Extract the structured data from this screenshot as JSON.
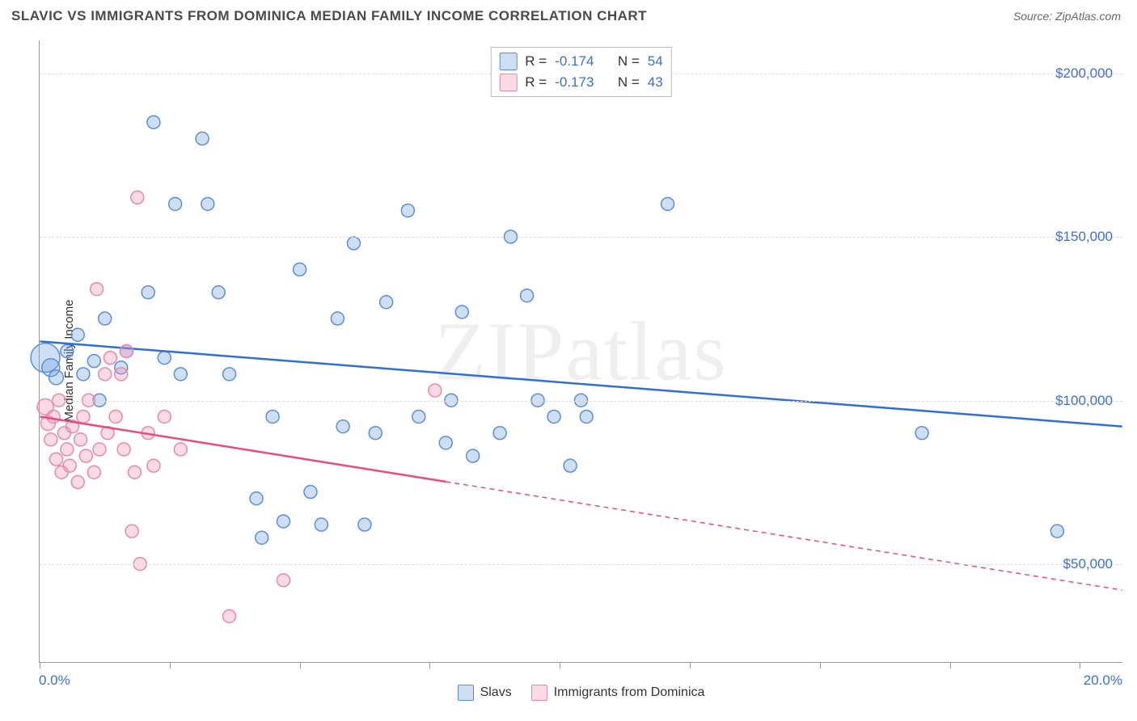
{
  "title": "SLAVIC VS IMMIGRANTS FROM DOMINICA MEDIAN FAMILY INCOME CORRELATION CHART",
  "source": "Source: ZipAtlas.com",
  "watermark": "ZIPatlas",
  "chart": {
    "type": "scatter",
    "ylabel": "Median Family Income",
    "xlim": [
      0,
      20
    ],
    "ylim": [
      20000,
      210000
    ],
    "x_start_label": "0.0%",
    "x_end_label": "20.0%",
    "xtick_positions_pct": [
      0,
      12,
      24,
      36,
      48,
      60,
      72,
      84,
      96
    ],
    "y_gridlines": [
      50000,
      100000,
      150000,
      200000
    ],
    "y_tick_labels": [
      "$50,000",
      "$100,000",
      "$150,000",
      "$200,000"
    ],
    "grid_color": "#dddddd",
    "axis_color": "#999999",
    "background_color": "#ffffff",
    "tick_label_color": "#3b6fd6",
    "marker_radius_base": 8,
    "marker_stroke_width": 1.5,
    "regression_line_width": 2.5,
    "series": [
      {
        "name": "Slavs",
        "fill_color": "rgba(116,163,223,0.35)",
        "stroke_color": "#5a8fd6",
        "line_color": "#2f6fd6",
        "R": "-0.174",
        "N": "54",
        "regression": {
          "x1": 0,
          "y1": 118000,
          "x2": 20,
          "y2": 92000,
          "solid_until_x": 20
        },
        "points": [
          {
            "x": 0.1,
            "y": 113000,
            "r": 18
          },
          {
            "x": 0.2,
            "y": 110000,
            "r": 11
          },
          {
            "x": 0.3,
            "y": 107000,
            "r": 9
          },
          {
            "x": 0.5,
            "y": 115000,
            "r": 8
          },
          {
            "x": 0.7,
            "y": 120000,
            "r": 8
          },
          {
            "x": 0.8,
            "y": 108000,
            "r": 8
          },
          {
            "x": 1.0,
            "y": 112000,
            "r": 8
          },
          {
            "x": 1.1,
            "y": 100000,
            "r": 8
          },
          {
            "x": 1.2,
            "y": 125000,
            "r": 8
          },
          {
            "x": 1.5,
            "y": 110000,
            "r": 8
          },
          {
            "x": 1.6,
            "y": 115000,
            "r": 8
          },
          {
            "x": 2.0,
            "y": 133000,
            "r": 8
          },
          {
            "x": 2.1,
            "y": 185000,
            "r": 8
          },
          {
            "x": 2.3,
            "y": 113000,
            "r": 8
          },
          {
            "x": 2.5,
            "y": 160000,
            "r": 8
          },
          {
            "x": 2.6,
            "y": 108000,
            "r": 8
          },
          {
            "x": 3.0,
            "y": 180000,
            "r": 8
          },
          {
            "x": 3.1,
            "y": 160000,
            "r": 8
          },
          {
            "x": 3.3,
            "y": 133000,
            "r": 8
          },
          {
            "x": 3.5,
            "y": 108000,
            "r": 8
          },
          {
            "x": 4.0,
            "y": 70000,
            "r": 8
          },
          {
            "x": 4.1,
            "y": 58000,
            "r": 8
          },
          {
            "x": 4.3,
            "y": 95000,
            "r": 8
          },
          {
            "x": 4.5,
            "y": 63000,
            "r": 8
          },
          {
            "x": 4.8,
            "y": 140000,
            "r": 8
          },
          {
            "x": 5.0,
            "y": 72000,
            "r": 8
          },
          {
            "x": 5.2,
            "y": 62000,
            "r": 8
          },
          {
            "x": 5.5,
            "y": 125000,
            "r": 8
          },
          {
            "x": 5.6,
            "y": 92000,
            "r": 8
          },
          {
            "x": 5.8,
            "y": 148000,
            "r": 8
          },
          {
            "x": 6.0,
            "y": 62000,
            "r": 8
          },
          {
            "x": 6.2,
            "y": 90000,
            "r": 8
          },
          {
            "x": 6.4,
            "y": 130000,
            "r": 8
          },
          {
            "x": 6.8,
            "y": 158000,
            "r": 8
          },
          {
            "x": 7.0,
            "y": 95000,
            "r": 8
          },
          {
            "x": 7.5,
            "y": 87000,
            "r": 8
          },
          {
            "x": 7.6,
            "y": 100000,
            "r": 8
          },
          {
            "x": 7.8,
            "y": 127000,
            "r": 8
          },
          {
            "x": 8.0,
            "y": 83000,
            "r": 8
          },
          {
            "x": 8.5,
            "y": 90000,
            "r": 8
          },
          {
            "x": 8.7,
            "y": 150000,
            "r": 8
          },
          {
            "x": 9.0,
            "y": 132000,
            "r": 8
          },
          {
            "x": 9.2,
            "y": 100000,
            "r": 8
          },
          {
            "x": 9.5,
            "y": 95000,
            "r": 8
          },
          {
            "x": 9.8,
            "y": 80000,
            "r": 8
          },
          {
            "x": 10.0,
            "y": 100000,
            "r": 8
          },
          {
            "x": 10.1,
            "y": 95000,
            "r": 8
          },
          {
            "x": 11.6,
            "y": 160000,
            "r": 8
          },
          {
            "x": 16.3,
            "y": 90000,
            "r": 8
          },
          {
            "x": 18.8,
            "y": 60000,
            "r": 8
          }
        ]
      },
      {
        "name": "Immigrants from Dominica",
        "fill_color": "rgba(240,150,180,0.35)",
        "stroke_color": "#e889aa",
        "line_color": "#ea4b78",
        "R": "-0.173",
        "N": "43",
        "regression": {
          "x1": 0,
          "y1": 95000,
          "x2": 20,
          "y2": 42000,
          "solid_until_x": 7.5
        },
        "points": [
          {
            "x": 0.1,
            "y": 98000,
            "r": 10
          },
          {
            "x": 0.15,
            "y": 93000,
            "r": 9
          },
          {
            "x": 0.2,
            "y": 88000,
            "r": 8
          },
          {
            "x": 0.25,
            "y": 95000,
            "r": 8
          },
          {
            "x": 0.3,
            "y": 82000,
            "r": 8
          },
          {
            "x": 0.35,
            "y": 100000,
            "r": 8
          },
          {
            "x": 0.4,
            "y": 78000,
            "r": 8
          },
          {
            "x": 0.45,
            "y": 90000,
            "r": 8
          },
          {
            "x": 0.5,
            "y": 85000,
            "r": 8
          },
          {
            "x": 0.55,
            "y": 80000,
            "r": 8
          },
          {
            "x": 0.6,
            "y": 92000,
            "r": 8
          },
          {
            "x": 0.7,
            "y": 75000,
            "r": 8
          },
          {
            "x": 0.75,
            "y": 88000,
            "r": 8
          },
          {
            "x": 0.8,
            "y": 95000,
            "r": 8
          },
          {
            "x": 0.85,
            "y": 83000,
            "r": 8
          },
          {
            "x": 0.9,
            "y": 100000,
            "r": 8
          },
          {
            "x": 1.0,
            "y": 78000,
            "r": 8
          },
          {
            "x": 1.05,
            "y": 134000,
            "r": 8
          },
          {
            "x": 1.1,
            "y": 85000,
            "r": 8
          },
          {
            "x": 1.2,
            "y": 108000,
            "r": 8
          },
          {
            "x": 1.25,
            "y": 90000,
            "r": 8
          },
          {
            "x": 1.3,
            "y": 113000,
            "r": 8
          },
          {
            "x": 1.4,
            "y": 95000,
            "r": 8
          },
          {
            "x": 1.5,
            "y": 108000,
            "r": 8
          },
          {
            "x": 1.55,
            "y": 85000,
            "r": 8
          },
          {
            "x": 1.6,
            "y": 115000,
            "r": 8
          },
          {
            "x": 1.7,
            "y": 60000,
            "r": 8
          },
          {
            "x": 1.75,
            "y": 78000,
            "r": 8
          },
          {
            "x": 1.8,
            "y": 162000,
            "r": 8
          },
          {
            "x": 1.85,
            "y": 50000,
            "r": 8
          },
          {
            "x": 2.0,
            "y": 90000,
            "r": 8
          },
          {
            "x": 2.1,
            "y": 80000,
            "r": 8
          },
          {
            "x": 2.3,
            "y": 95000,
            "r": 8
          },
          {
            "x": 2.6,
            "y": 85000,
            "r": 8
          },
          {
            "x": 3.5,
            "y": 34000,
            "r": 8
          },
          {
            "x": 4.5,
            "y": 45000,
            "r": 8
          },
          {
            "x": 7.3,
            "y": 103000,
            "r": 8
          }
        ]
      }
    ],
    "legend_labels": {
      "R_prefix": "R = ",
      "N_prefix": "N = "
    }
  }
}
